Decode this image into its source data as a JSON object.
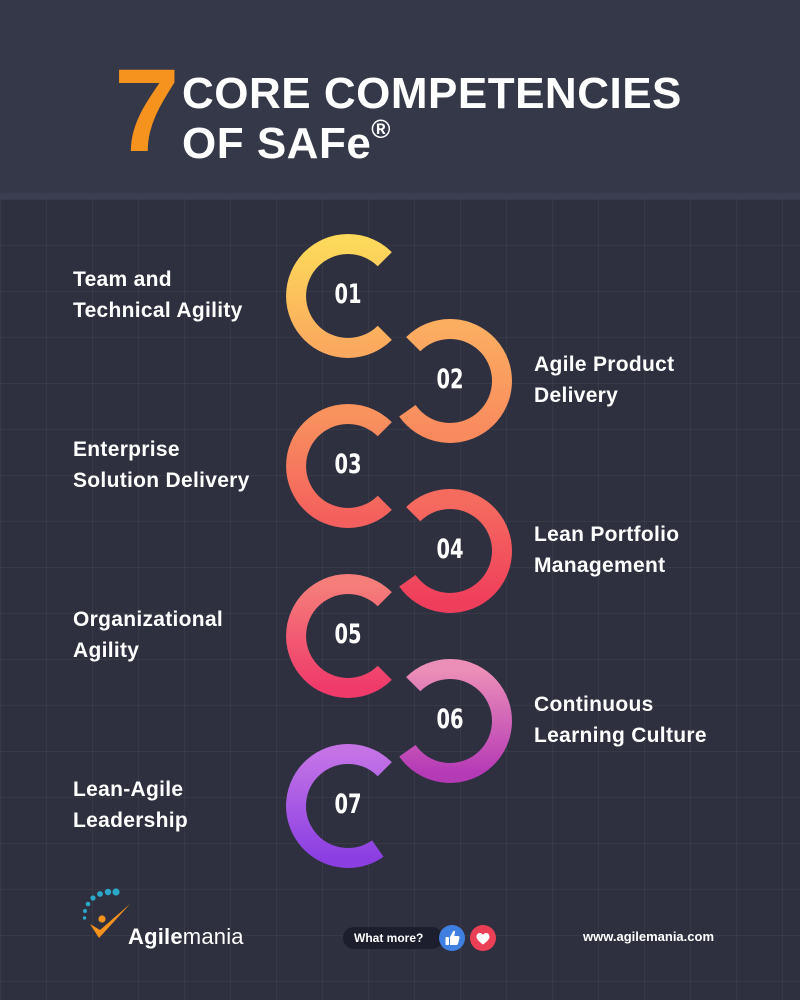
{
  "header": {
    "big_number": "7",
    "title_line1": "CORE COMPETENCIES",
    "title_line2": "OF SAFe",
    "title_mark": "®"
  },
  "competencies": [
    {
      "number": "01",
      "line1": "Team and",
      "line2": "Technical Agility",
      "color_start": "#fcd95a",
      "color_end": "#fba95e"
    },
    {
      "number": "02",
      "line1": "Agile Product",
      "line2": "Delivery",
      "color_start": "#fbad60",
      "color_end": "#f98a5e"
    },
    {
      "number": "03",
      "line1": "Enterprise",
      "line2": "Solution Delivery",
      "color_start": "#f8935e",
      "color_end": "#f4605d"
    },
    {
      "number": "04",
      "line1": "Lean Portfolio",
      "line2": "Management",
      "color_start": "#f56c5f",
      "color_end": "#ef3e5b"
    },
    {
      "number": "05",
      "line1": "Organizational",
      "line2": "Agility",
      "color_start": "#f57e7a",
      "color_end": "#ef3a6a"
    },
    {
      "number": "06",
      "line1": "Continuous",
      "line2": "Learning Culture",
      "color_start": "#ec8fb8",
      "color_end": "#b53ab6"
    },
    {
      "number": "07",
      "line1": "Lean-Agile",
      "line2": "Leadership",
      "color_start": "#c373e6",
      "color_end": "#8b3fe2"
    }
  ],
  "footer": {
    "brand_bold": "Agile",
    "brand_regular": "mania",
    "what_more": "What more?",
    "website": "www.agilemania.com"
  },
  "colors": {
    "background": "#2e303f",
    "header_background": "#353849",
    "accent": "#f6921e",
    "logo_teal": "#2aa7c9",
    "logo_orange": "#f6921e",
    "thumb_icon": "#3f7fe0",
    "heart_icon": "#ea3f55"
  },
  "icons": [
    "agilemania-logo-icon",
    "thumbs-up-icon",
    "heart-icon"
  ]
}
